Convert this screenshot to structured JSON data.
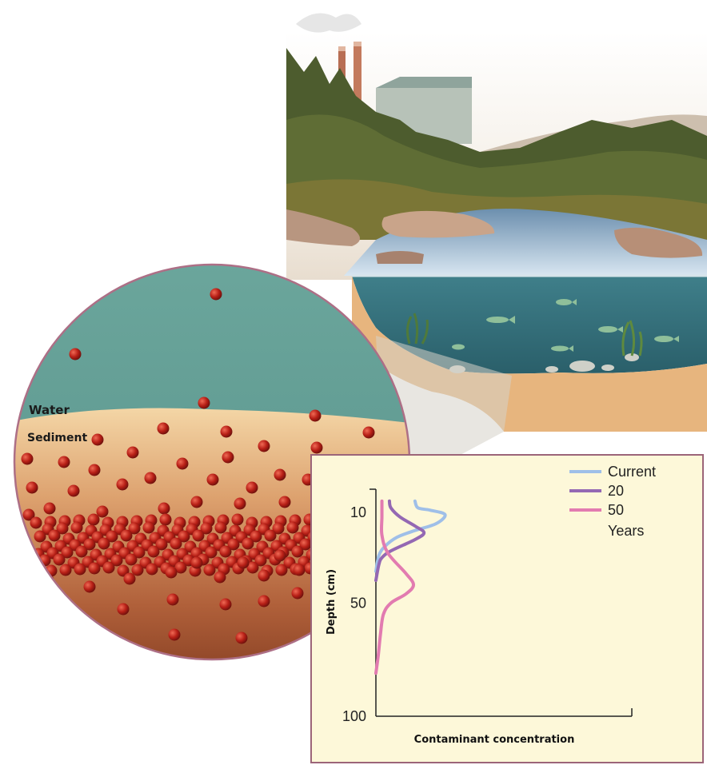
{
  "magnifier": {
    "water_label": "Water",
    "sediment_label": "Sediment"
  },
  "colors": {
    "particle": "#b82017",
    "water": "#5f9a91",
    "sediment_top": "#f1cf9c",
    "sediment_deep": "#9a4a25",
    "chart_bg": "#fdf8d9",
    "current": "#9fbfe8",
    "twenty": "#9468b3",
    "fifty": "#e27bb0"
  },
  "chart_data": {
    "type": "line",
    "title": "",
    "xlabel": "Contaminant concentration",
    "ylabel": "Depth (cm)",
    "ylim": [
      5,
      100
    ],
    "y_inverted": true,
    "yticks": [
      "10",
      "50",
      "100"
    ],
    "legend": {
      "placement": "top-right",
      "entries": [
        "Current",
        "20",
        "50"
      ],
      "suffix": "Years"
    },
    "series": [
      {
        "name": "Current",
        "color": "#9fbfe8",
        "points": [
          [
            0.13,
            5
          ],
          [
            0.14,
            8
          ],
          [
            0.18,
            9
          ],
          [
            0.23,
            11
          ],
          [
            0.2,
            15
          ],
          [
            0.13,
            18
          ],
          [
            0.07,
            21
          ],
          [
            0.03,
            25
          ],
          [
            0.01,
            29
          ],
          [
            0.0,
            36
          ]
        ]
      },
      {
        "name": "20",
        "color": "#9468b3",
        "points": [
          [
            0.045,
            5
          ],
          [
            0.05,
            8
          ],
          [
            0.08,
            12
          ],
          [
            0.13,
            16
          ],
          [
            0.16,
            19
          ],
          [
            0.13,
            22
          ],
          [
            0.05,
            27
          ],
          [
            0.02,
            30
          ],
          [
            0.01,
            33
          ],
          [
            0.0,
            40
          ]
        ]
      },
      {
        "name": "50",
        "color": "#e27bb0",
        "points": [
          [
            0.02,
            5
          ],
          [
            0.02,
            12
          ],
          [
            0.02,
            20
          ],
          [
            0.04,
            28
          ],
          [
            0.1,
            37
          ],
          [
            0.125,
            42
          ],
          [
            0.1,
            46
          ],
          [
            0.05,
            50
          ],
          [
            0.025,
            55
          ],
          [
            0.015,
            64
          ],
          [
            0.008,
            73
          ],
          [
            0.0,
            81
          ]
        ]
      }
    ]
  }
}
